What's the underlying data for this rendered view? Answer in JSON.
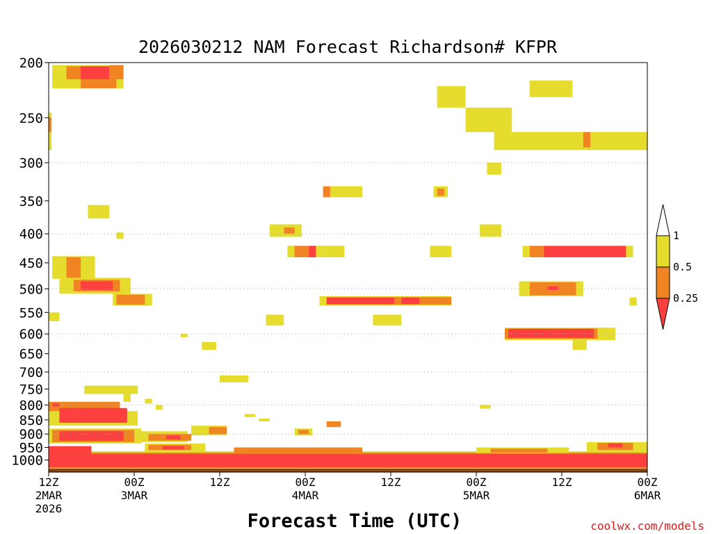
{
  "chart_data": {
    "type": "heatmap",
    "title": "2026030212 NAM Forecast Richardson# KFPR",
    "xlabel": "Forecast Time (UTC)",
    "ylabel": "",
    "xlim_hours": [
      0,
      84
    ],
    "ylim_hpa": [
      1050,
      200
    ],
    "y_scale": "log-pressure",
    "y_ticks": [
      200,
      250,
      300,
      350,
      400,
      450,
      500,
      550,
      600,
      650,
      700,
      750,
      800,
      850,
      900,
      950,
      1000
    ],
    "y_gridlines": [
      300,
      400,
      500,
      600,
      700,
      800,
      900
    ],
    "x_ticks": [
      {
        "hour": 0,
        "line1": "12Z",
        "line2": "2MAR",
        "line3": "2026"
      },
      {
        "hour": 12,
        "line1": "00Z",
        "line2": "3MAR",
        "line3": ""
      },
      {
        "hour": 24,
        "line1": "12Z",
        "line2": "",
        "line3": ""
      },
      {
        "hour": 36,
        "line1": "00Z",
        "line2": "4MAR",
        "line3": ""
      },
      {
        "hour": 48,
        "line1": "12Z",
        "line2": "",
        "line3": ""
      },
      {
        "hour": 60,
        "line1": "00Z",
        "line2": "5MAR",
        "line3": ""
      },
      {
        "hour": 72,
        "line1": "12Z",
        "line2": "",
        "line3": ""
      },
      {
        "hour": 84,
        "line1": "00Z",
        "line2": "6MAR",
        "line3": ""
      }
    ],
    "legend": {
      "placement": "right",
      "labels": [
        "1",
        "0.5",
        "0.25"
      ],
      "bins": [
        {
          "range": ">1",
          "color": "#ffffff"
        },
        {
          "range": "0.5-1",
          "color": "#e5dc2e"
        },
        {
          "range": "0.25-0.5",
          "color": "#f08423"
        },
        {
          "range": "<0.25",
          "color": "#fc4040"
        }
      ]
    },
    "colors": {
      "high": "#e5dc2e",
      "mid": "#f08423",
      "low": "#fc4040",
      "ground": "#8b4513"
    },
    "cells": [
      {
        "h0": 0.5,
        "h1": 10.5,
        "p0": 202,
        "p1": 222,
        "c": "high"
      },
      {
        "h0": 2.5,
        "h1": 5,
        "p0": 203,
        "p1": 214,
        "c": "mid"
      },
      {
        "h0": 4.5,
        "h1": 8.5,
        "p0": 203,
        "p1": 214,
        "c": "low"
      },
      {
        "h0": 4.5,
        "h1": 9.5,
        "p0": 214,
        "p1": 222,
        "c": "mid"
      },
      {
        "h0": 8.5,
        "h1": 10.5,
        "p0": 202,
        "p1": 214,
        "c": "mid"
      },
      {
        "h0": 0,
        "h1": 0.4,
        "p0": 245,
        "p1": 285,
        "c": "high"
      },
      {
        "h0": 0,
        "h1": 0.4,
        "p0": 250,
        "p1": 265,
        "c": "mid"
      },
      {
        "h0": 5.5,
        "h1": 8.5,
        "p0": 356,
        "p1": 376,
        "c": "high"
      },
      {
        "h0": 9.5,
        "h1": 10.5,
        "p0": 398,
        "p1": 408,
        "c": "high"
      },
      {
        "h0": 0.5,
        "h1": 6.5,
        "p0": 438,
        "p1": 480,
        "c": "high"
      },
      {
        "h0": 2.5,
        "h1": 4.5,
        "p0": 440,
        "p1": 478,
        "c": "mid"
      },
      {
        "h0": 1.5,
        "h1": 11.5,
        "p0": 478,
        "p1": 510,
        "c": "high"
      },
      {
        "h0": 3.5,
        "h1": 10,
        "p0": 482,
        "p1": 505,
        "c": "mid"
      },
      {
        "h0": 4.5,
        "h1": 9,
        "p0": 485,
        "p1": 502,
        "c": "low"
      },
      {
        "h0": 9,
        "h1": 14.5,
        "p0": 510,
        "p1": 535,
        "c": "high"
      },
      {
        "h0": 9.5,
        "h1": 13.5,
        "p0": 512,
        "p1": 533,
        "c": "mid"
      },
      {
        "h0": 0,
        "h1": 1.5,
        "p0": 550,
        "p1": 570,
        "c": "high"
      },
      {
        "h0": 5,
        "h1": 12.5,
        "p0": 740,
        "p1": 765,
        "c": "high"
      },
      {
        "h0": 10.5,
        "h1": 11.5,
        "p0": 765,
        "p1": 790,
        "c": "high"
      },
      {
        "h0": 13.5,
        "h1": 14.5,
        "p0": 780,
        "p1": 795,
        "c": "high"
      },
      {
        "h0": 15,
        "h1": 16,
        "p0": 800,
        "p1": 815,
        "c": "high"
      },
      {
        "h0": 18.5,
        "h1": 19.5,
        "p0": 600,
        "p1": 608,
        "c": "high"
      },
      {
        "h0": 21.5,
        "h1": 23.5,
        "p0": 620,
        "p1": 640,
        "c": "high"
      },
      {
        "h0": 24,
        "h1": 28,
        "p0": 710,
        "p1": 730,
        "c": "high"
      },
      {
        "h0": 0,
        "h1": 10,
        "p0": 790,
        "p1": 860,
        "c": "mid"
      },
      {
        "h0": 0,
        "h1": 12.5,
        "p0": 820,
        "p1": 870,
        "c": "high"
      },
      {
        "h0": 1.5,
        "h1": 11,
        "p0": 810,
        "p1": 860,
        "c": "low"
      },
      {
        "h0": 0.5,
        "h1": 1.5,
        "p0": 795,
        "p1": 805,
        "c": "low"
      },
      {
        "h0": 0,
        "h1": 13,
        "p0": 880,
        "p1": 935,
        "c": "high"
      },
      {
        "h0": 0.5,
        "h1": 12,
        "p0": 885,
        "p1": 930,
        "c": "mid"
      },
      {
        "h0": 1.5,
        "h1": 10.5,
        "p0": 890,
        "p1": 925,
        "c": "low"
      },
      {
        "h0": 12.5,
        "h1": 19.5,
        "p0": 890,
        "p1": 930,
        "c": "high"
      },
      {
        "h0": 14,
        "h1": 20,
        "p0": 900,
        "p1": 925,
        "c": "mid"
      },
      {
        "h0": 16.5,
        "h1": 18.5,
        "p0": 905,
        "p1": 920,
        "c": "low"
      },
      {
        "h0": 20,
        "h1": 25,
        "p0": 870,
        "p1": 905,
        "c": "high"
      },
      {
        "h0": 22.5,
        "h1": 25,
        "p0": 875,
        "p1": 900,
        "c": "mid"
      },
      {
        "h0": 27.5,
        "h1": 29,
        "p0": 830,
        "p1": 840,
        "c": "high"
      },
      {
        "h0": 29.5,
        "h1": 31,
        "p0": 845,
        "p1": 855,
        "c": "high"
      },
      {
        "h0": 34.5,
        "h1": 37,
        "p0": 880,
        "p1": 905,
        "c": "high"
      },
      {
        "h0": 35,
        "h1": 36.5,
        "p0": 885,
        "p1": 900,
        "c": "mid"
      },
      {
        "h0": 39,
        "h1": 41,
        "p0": 855,
        "p1": 875,
        "c": "mid"
      },
      {
        "h0": 13.5,
        "h1": 22,
        "p0": 935,
        "p1": 965,
        "c": "high"
      },
      {
        "h0": 14,
        "h1": 20,
        "p0": 940,
        "p1": 960,
        "c": "mid"
      },
      {
        "h0": 16,
        "h1": 19,
        "p0": 945,
        "p1": 958,
        "c": "low"
      },
      {
        "h0": 0,
        "h1": 84,
        "p0": 965,
        "p1": 1035,
        "c": "high"
      },
      {
        "h0": 0,
        "h1": 84,
        "p0": 970,
        "p1": 1032,
        "c": "mid"
      },
      {
        "h0": 0,
        "h1": 84,
        "p0": 975,
        "p1": 1030,
        "c": "low"
      },
      {
        "h0": 0,
        "h1": 6,
        "p0": 945,
        "p1": 975,
        "c": "low"
      },
      {
        "h0": 26,
        "h1": 44,
        "p0": 950,
        "p1": 975,
        "c": "mid"
      },
      {
        "h0": 60,
        "h1": 73,
        "p0": 950,
        "p1": 972,
        "c": "high"
      },
      {
        "h0": 62,
        "h1": 70,
        "p0": 955,
        "p1": 970,
        "c": "mid"
      },
      {
        "h0": 75.5,
        "h1": 84,
        "p0": 930,
        "p1": 965,
        "c": "high"
      },
      {
        "h0": 77,
        "h1": 82,
        "p0": 933,
        "p1": 960,
        "c": "mid"
      },
      {
        "h0": 78.5,
        "h1": 80.5,
        "p0": 935,
        "p1": 950,
        "c": "low"
      },
      {
        "h0": 54.5,
        "h1": 58.5,
        "p0": 220,
        "p1": 240,
        "c": "high"
      },
      {
        "h0": 58.5,
        "h1": 65,
        "p0": 240,
        "p1": 265,
        "c": "high"
      },
      {
        "h0": 62.5,
        "h1": 84,
        "p0": 265,
        "p1": 285,
        "c": "high"
      },
      {
        "h0": 67.5,
        "h1": 73.5,
        "p0": 215,
        "p1": 230,
        "c": "high"
      },
      {
        "h0": 75,
        "h1": 76,
        "p0": 265,
        "p1": 282,
        "c": "mid"
      },
      {
        "h0": 61.5,
        "h1": 63.5,
        "p0": 300,
        "p1": 315,
        "c": "high"
      },
      {
        "h0": 60.5,
        "h1": 63.5,
        "p0": 385,
        "p1": 405,
        "c": "high"
      },
      {
        "h0": 39.5,
        "h1": 44,
        "p0": 330,
        "p1": 345,
        "c": "high"
      },
      {
        "h0": 38.5,
        "h1": 39.5,
        "p0": 330,
        "p1": 345,
        "c": "mid"
      },
      {
        "h0": 54,
        "h1": 56,
        "p0": 330,
        "p1": 345,
        "c": "high"
      },
      {
        "h0": 54.5,
        "h1": 55.5,
        "p0": 333,
        "p1": 343,
        "c": "mid"
      },
      {
        "h0": 31,
        "h1": 35.5,
        "p0": 385,
        "p1": 405,
        "c": "high"
      },
      {
        "h0": 33,
        "h1": 34.5,
        "p0": 390,
        "p1": 400,
        "c": "mid"
      },
      {
        "h0": 33.5,
        "h1": 38.5,
        "p0": 420,
        "p1": 440,
        "c": "high"
      },
      {
        "h0": 34.5,
        "h1": 36.5,
        "p0": 420,
        "p1": 440,
        "c": "mid"
      },
      {
        "h0": 36.5,
        "h1": 37.5,
        "p0": 420,
        "p1": 440,
        "c": "low"
      },
      {
        "h0": 38.5,
        "h1": 41.5,
        "p0": 420,
        "p1": 440,
        "c": "high"
      },
      {
        "h0": 53.5,
        "h1": 56.5,
        "p0": 420,
        "p1": 440,
        "c": "high"
      },
      {
        "h0": 66.5,
        "h1": 82,
        "p0": 420,
        "p1": 440,
        "c": "high"
      },
      {
        "h0": 67.5,
        "h1": 81,
        "p0": 420,
        "p1": 440,
        "c": "mid"
      },
      {
        "h0": 69.5,
        "h1": 81,
        "p0": 420,
        "p1": 440,
        "c": "low"
      },
      {
        "h0": 38,
        "h1": 56.5,
        "p0": 515,
        "p1": 535,
        "c": "high"
      },
      {
        "h0": 39,
        "h1": 56.5,
        "p0": 517,
        "p1": 533,
        "c": "mid"
      },
      {
        "h0": 39,
        "h1": 52,
        "p0": 518,
        "p1": 532,
        "c": "low"
      },
      {
        "h0": 48.5,
        "h1": 50,
        "p0": 518,
        "p1": 532,
        "c": "mid"
      },
      {
        "h0": 49.5,
        "h1": 51,
        "p0": 518,
        "p1": 532,
        "c": "low"
      },
      {
        "h0": 30.5,
        "h1": 33,
        "p0": 555,
        "p1": 580,
        "c": "high"
      },
      {
        "h0": 45.5,
        "h1": 49.5,
        "p0": 555,
        "p1": 580,
        "c": "high"
      },
      {
        "h0": 66,
        "h1": 75,
        "p0": 485,
        "p1": 515,
        "c": "high"
      },
      {
        "h0": 67.5,
        "h1": 74,
        "p0": 487,
        "p1": 513,
        "c": "mid"
      },
      {
        "h0": 70,
        "h1": 71.5,
        "p0": 495,
        "p1": 502,
        "c": "low"
      },
      {
        "h0": 81.5,
        "h1": 82.5,
        "p0": 518,
        "p1": 535,
        "c": "high"
      },
      {
        "h0": 64,
        "h1": 79.5,
        "p0": 585,
        "p1": 615,
        "c": "high"
      },
      {
        "h0": 64,
        "h1": 77,
        "p0": 587,
        "p1": 612,
        "c": "mid"
      },
      {
        "h0": 64.5,
        "h1": 76.5,
        "p0": 588,
        "p1": 610,
        "c": "low"
      },
      {
        "h0": 73.5,
        "h1": 75.5,
        "p0": 615,
        "p1": 640,
        "c": "high"
      },
      {
        "h0": 60.5,
        "h1": 62,
        "p0": 800,
        "p1": 812,
        "c": "high"
      }
    ]
  },
  "credit": "coolwx.com/models"
}
